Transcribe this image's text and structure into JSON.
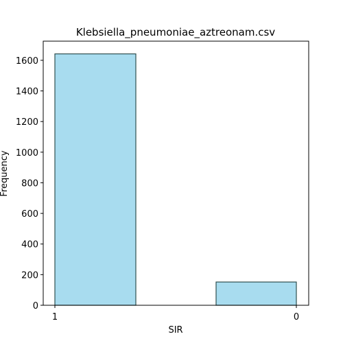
{
  "chart_data": {
    "type": "bar",
    "title": "Klebsiella_pneumoniae_aztreonam.csv",
    "xlabel": "SIR",
    "ylabel": "Frequency",
    "categories": [
      "1",
      "0"
    ],
    "values": [
      1642,
      152
    ],
    "ylim": [
      0,
      1725
    ],
    "yticks": [
      0,
      200,
      400,
      600,
      800,
      1000,
      1200,
      1400,
      1600
    ],
    "grid": false,
    "bar_color": "#a8dcef",
    "edge_color": "#2f4f4f"
  }
}
